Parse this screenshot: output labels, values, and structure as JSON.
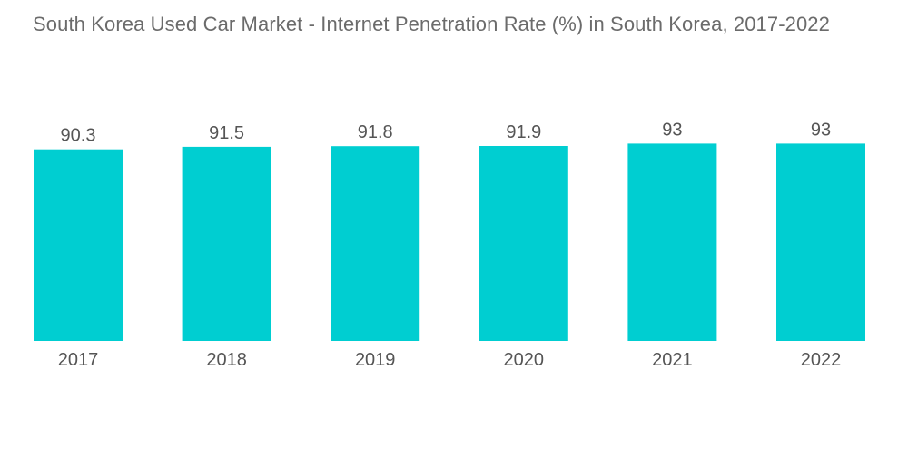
{
  "chart_data": {
    "type": "bar",
    "title": "South Korea Used Car Market - Internet Penetration Rate (%) in South Korea, 2017-2022",
    "categories": [
      "2017",
      "2018",
      "2019",
      "2020",
      "2021",
      "2022"
    ],
    "values": [
      90.3,
      91.5,
      91.8,
      91.9,
      93,
      93
    ],
    "data_labels": [
      "90.3",
      "91.5",
      "91.8",
      "91.9",
      "93",
      "93"
    ],
    "xlabel": "",
    "ylabel": "",
    "ylim": [
      0,
      100
    ],
    "grid": false,
    "legend": "none",
    "bar_color": "#00CED1"
  }
}
